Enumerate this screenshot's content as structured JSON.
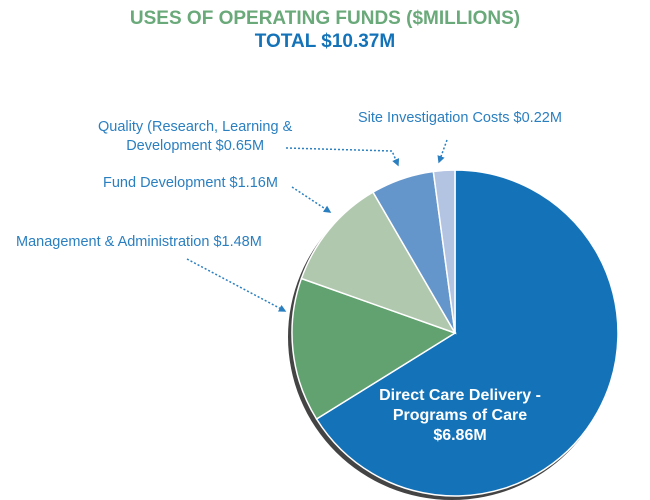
{
  "chart_data": {
    "type": "pie",
    "title": "USES OF OPERATING FUNDS ($MILLIONS)",
    "subtitle": "TOTAL $10.37M",
    "unit": "$M",
    "slices": [
      {
        "name": "Direct Care Delivery - Programs of Care",
        "value": 6.86,
        "color": "#1473b8",
        "label_lines": [
          "Direct Care Delivery -",
          "Programs of Care",
          "$6.86M"
        ]
      },
      {
        "name": "Management & Administration",
        "value": 1.48,
        "color": "#62a170",
        "label": "Management & Administration $1.48M"
      },
      {
        "name": "Fund Development",
        "value": 1.16,
        "color": "#b0c8ae",
        "label": "Fund Development $1.16M"
      },
      {
        "name": "Quality (Research, Learning & Development",
        "value": 0.65,
        "color": "#6596cb",
        "label_lines": [
          "Quality (Research, Learning &",
          "Development $0.65M"
        ]
      },
      {
        "name": "Site Investigation Costs",
        "value": 0.22,
        "color": "#b3c3e2",
        "label": "Site Investigation Costs $0.22M"
      }
    ]
  }
}
